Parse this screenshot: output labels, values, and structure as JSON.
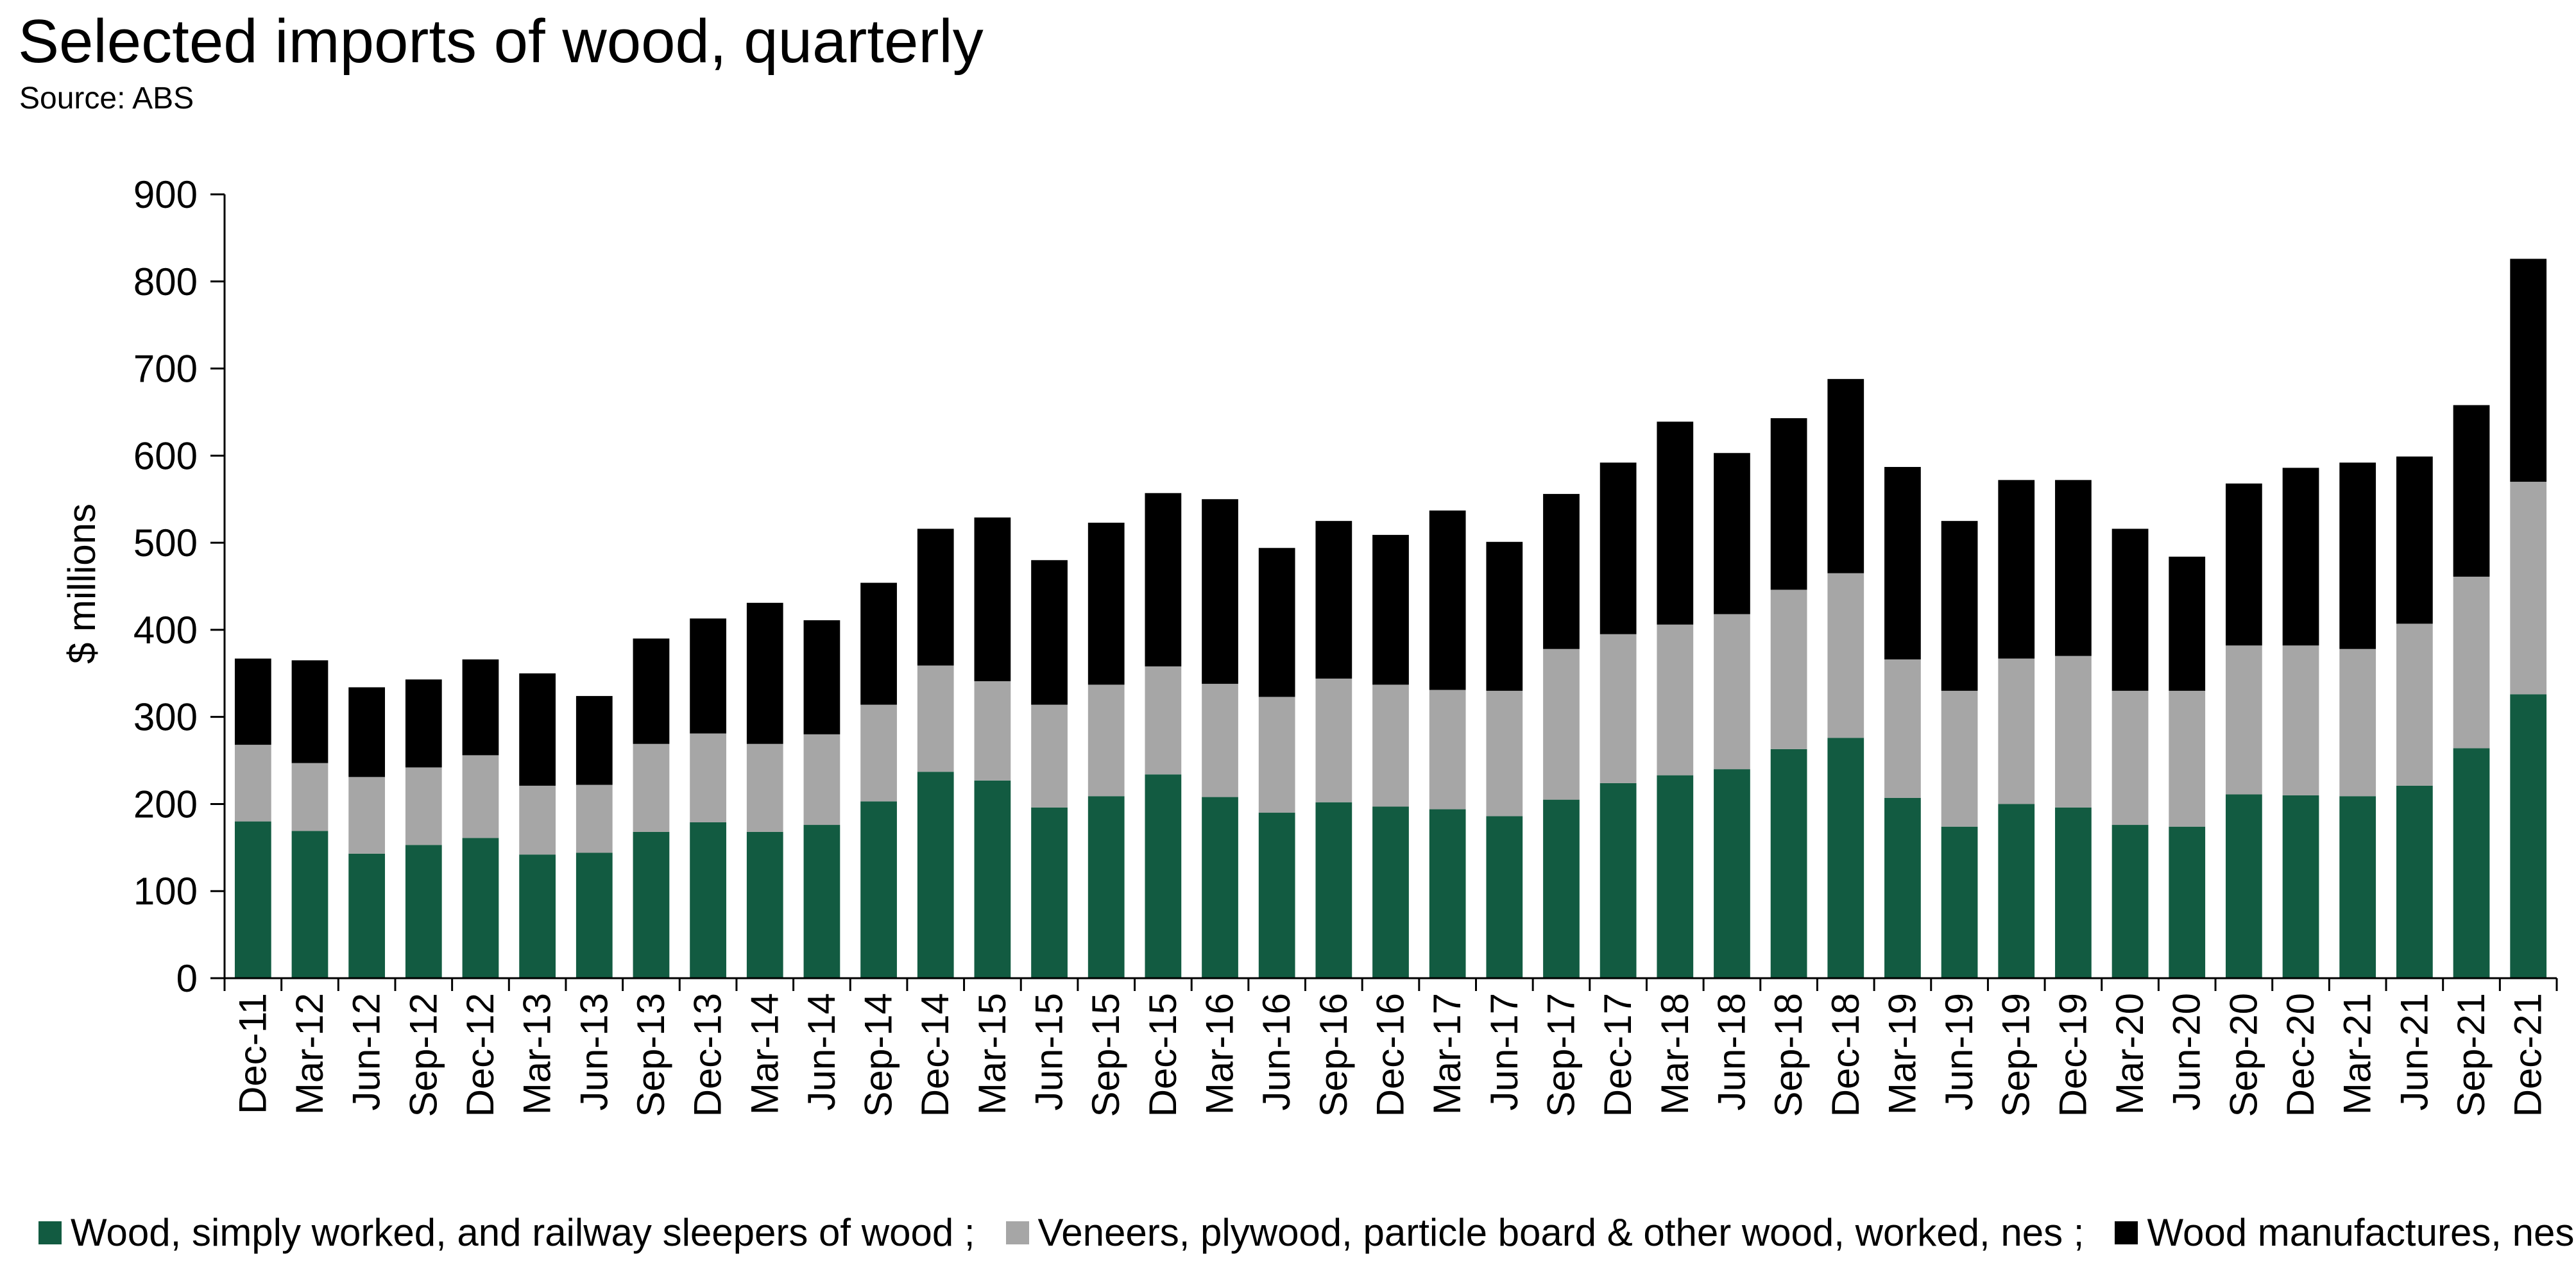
{
  "chart_data": {
    "type": "bar",
    "stacked": true,
    "title": "Selected imports of wood, quarterly",
    "subtitle": "Source: ABS",
    "xlabel": "",
    "ylabel": "$ millions",
    "ylim": [
      0,
      900
    ],
    "yticks": [
      0,
      100,
      200,
      300,
      400,
      500,
      600,
      700,
      800,
      900
    ],
    "grid": false,
    "legend_position": "bottom",
    "categories": [
      "Dec-11",
      "Mar-12",
      "Jun-12",
      "Sep-12",
      "Dec-12",
      "Mar-13",
      "Jun-13",
      "Sep-13",
      "Dec-13",
      "Mar-14",
      "Jun-14",
      "Sep-14",
      "Dec-14",
      "Mar-15",
      "Jun-15",
      "Sep-15",
      "Dec-15",
      "Mar-16",
      "Jun-16",
      "Sep-16",
      "Dec-16",
      "Mar-17",
      "Jun-17",
      "Sep-17",
      "Dec-17",
      "Mar-18",
      "Jun-18",
      "Sep-18",
      "Dec-18",
      "Mar-19",
      "Jun-19",
      "Sep-19",
      "Dec-19",
      "Mar-20",
      "Jun-20",
      "Sep-20",
      "Dec-20",
      "Mar-21",
      "Jun-21",
      "Sep-21",
      "Dec-21"
    ],
    "series": [
      {
        "name": "Wood, simply worked, and railway sleepers of wood ;",
        "color": "#125b41",
        "values": [
          180,
          169,
          143,
          153,
          161,
          142,
          144,
          168,
          179,
          168,
          176,
          203,
          237,
          227,
          196,
          209,
          234,
          208,
          190,
          202,
          197,
          194,
          186,
          205,
          224,
          233,
          240,
          263,
          276,
          207,
          174,
          200,
          196,
          176,
          174,
          211,
          210,
          209,
          221,
          264,
          326
        ]
      },
      {
        "name": "Veneers, plywood, particle board & other wood, worked, nes ;",
        "color": "#a6a6a6",
        "values": [
          88,
          78,
          88,
          89,
          95,
          79,
          78,
          101,
          102,
          101,
          104,
          111,
          122,
          114,
          118,
          128,
          124,
          130,
          133,
          142,
          140,
          137,
          144,
          173,
          171,
          173,
          178,
          183,
          189,
          159,
          156,
          167,
          174,
          154,
          156,
          171,
          172,
          169,
          186,
          197,
          244
        ]
      },
      {
        "name": "Wood manufactures, nes ;",
        "color": "#000000",
        "values": [
          99,
          118,
          103,
          101,
          110,
          129,
          102,
          121,
          132,
          162,
          131,
          140,
          157,
          188,
          166,
          186,
          199,
          212,
          171,
          181,
          172,
          206,
          171,
          178,
          197,
          233,
          185,
          197,
          223,
          221,
          195,
          205,
          202,
          186,
          154,
          186,
          204,
          214,
          192,
          197,
          256
        ]
      }
    ]
  }
}
